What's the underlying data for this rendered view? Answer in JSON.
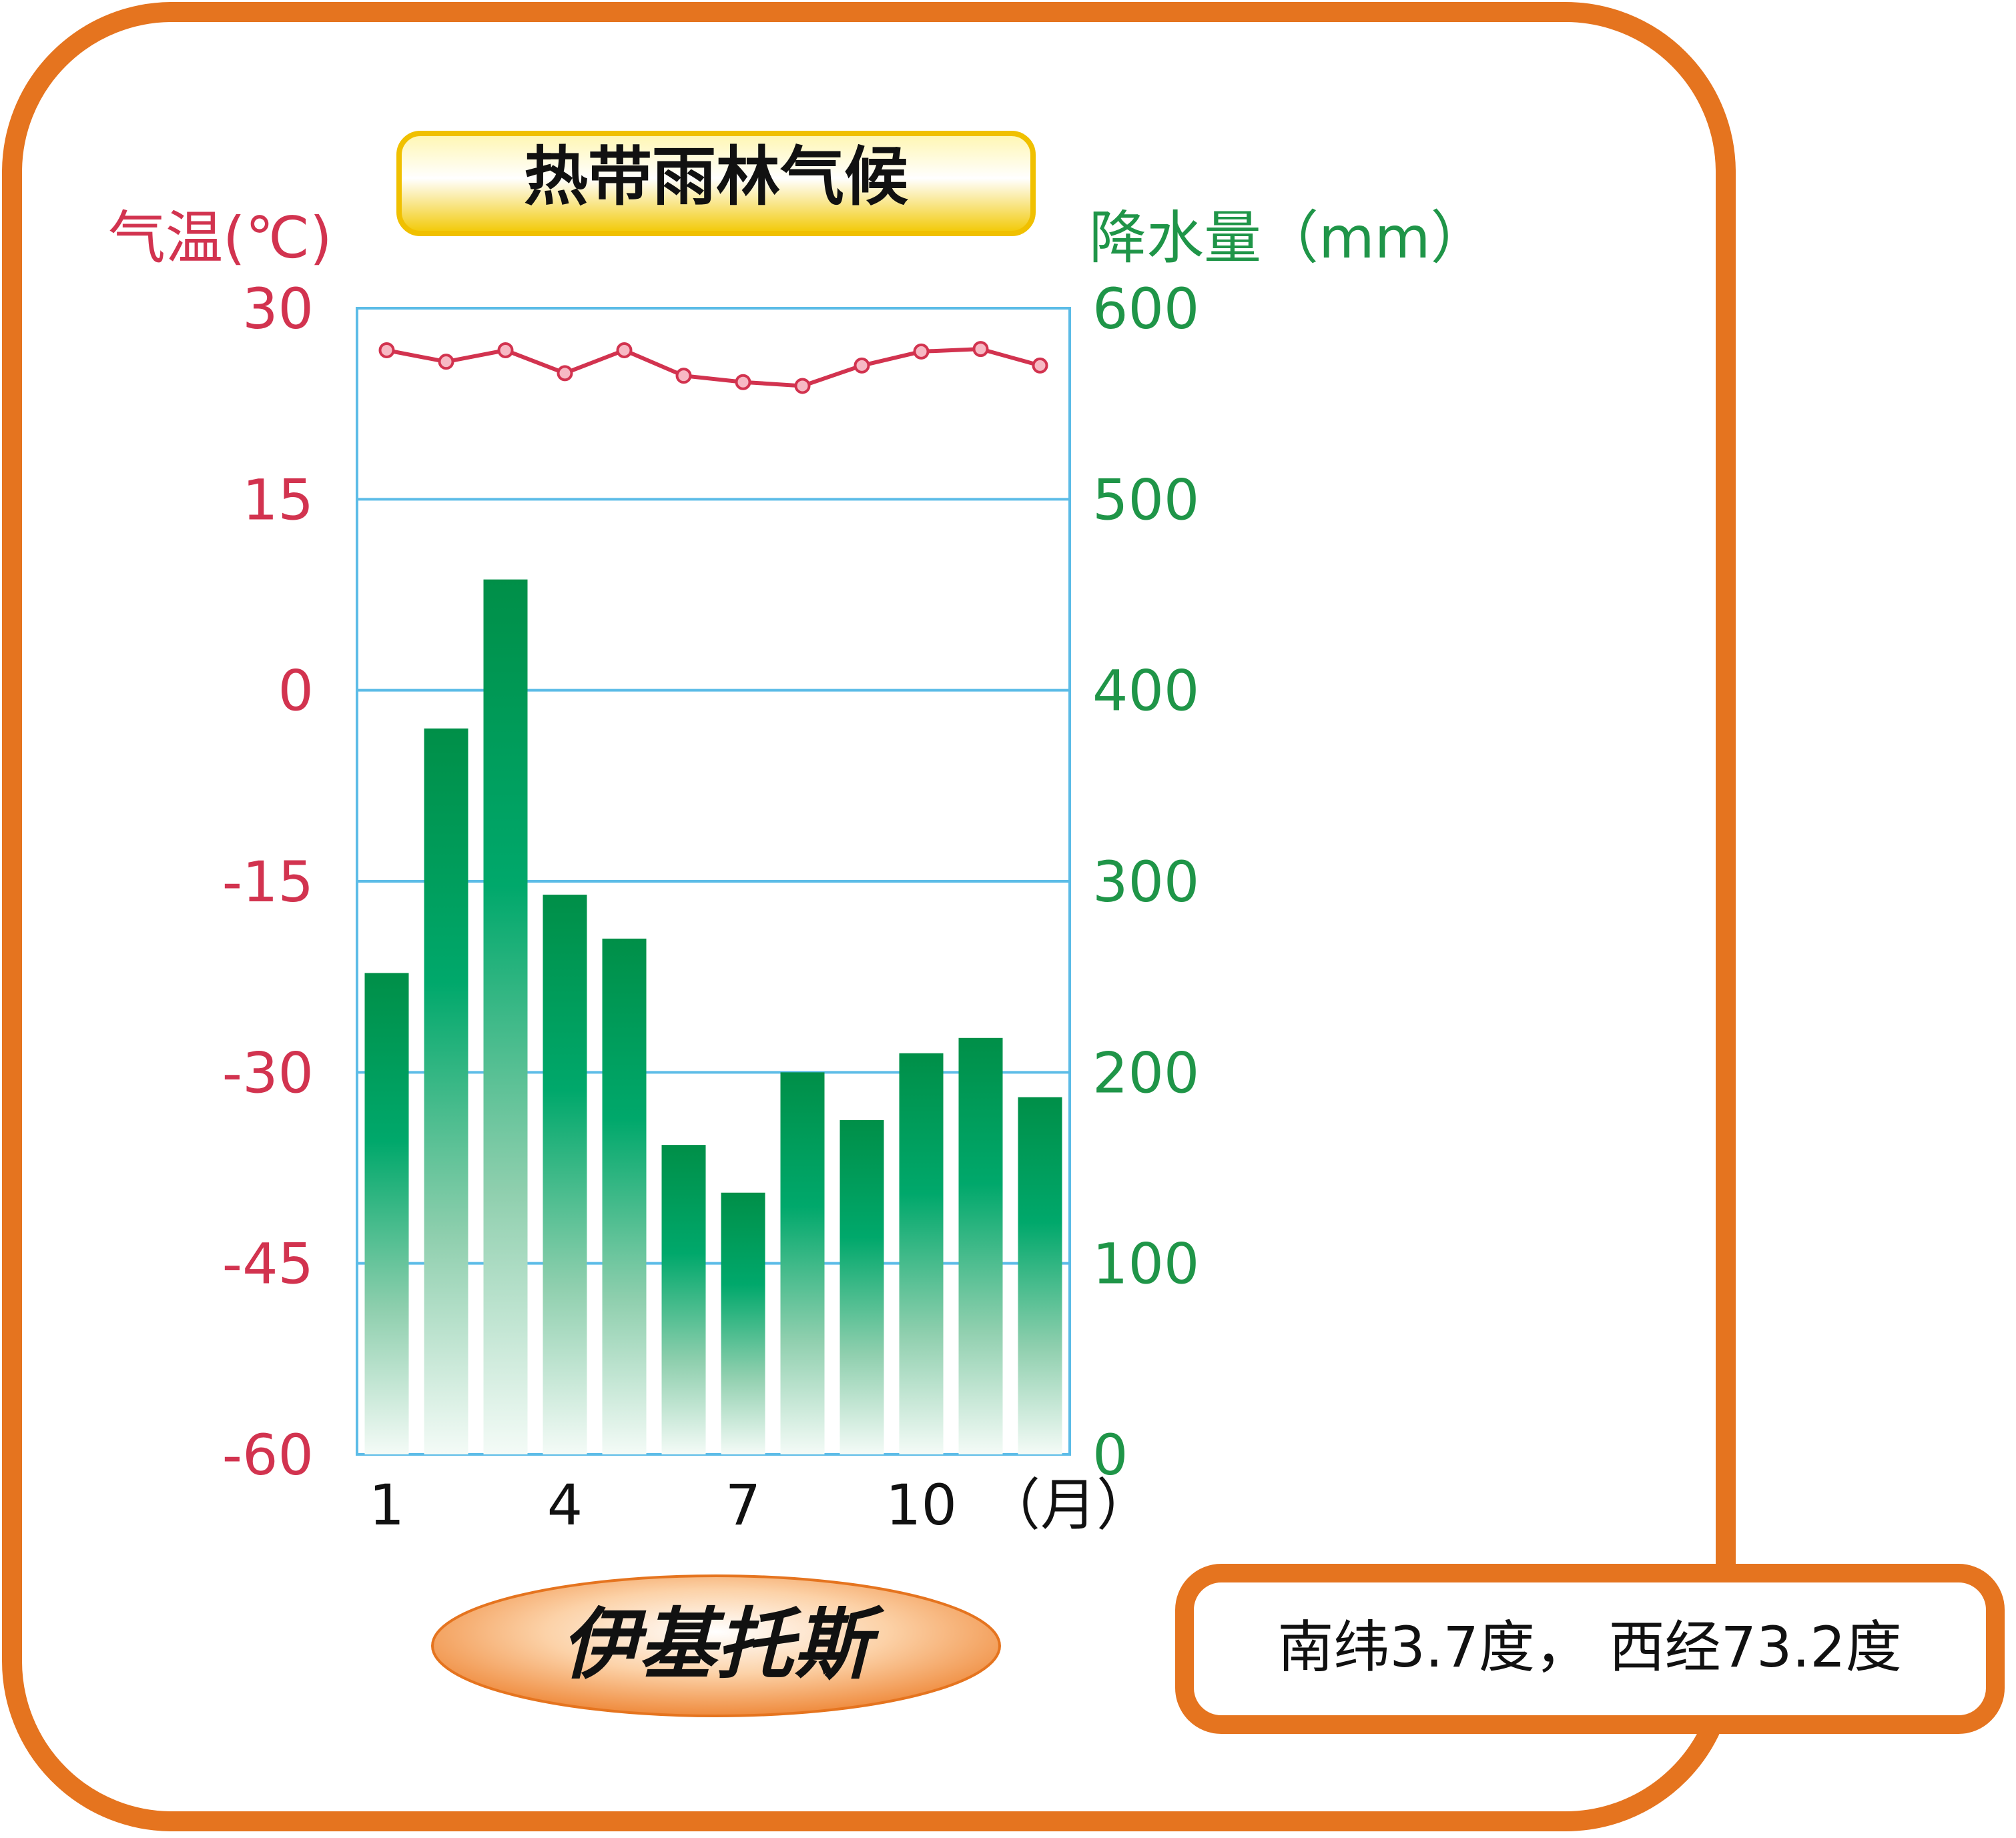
{
  "chart_data": {
    "type": "bar+line",
    "title": "热带雨林气候",
    "station": "伊基托斯",
    "location": "南纬3.7度， 西经73.2度",
    "left_axis": {
      "label": "气温(℃)",
      "ylim": [
        -60,
        30
      ],
      "ticks": [
        30,
        15,
        0,
        -15,
        -30,
        -45,
        -60
      ]
    },
    "right_axis": {
      "label": "降水量（mm）",
      "ylim": [
        0,
        600
      ],
      "ticks": [
        600,
        500,
        400,
        300,
        200,
        100,
        0
      ]
    },
    "x_axis": {
      "unit_label": "（月）",
      "tick_labels": [
        "1",
        "4",
        "7",
        "10"
      ],
      "tick_months": [
        1,
        4,
        7,
        10
      ]
    },
    "months": [
      1,
      2,
      3,
      4,
      5,
      6,
      7,
      8,
      9,
      10,
      11,
      12
    ],
    "series": [
      {
        "name": "降水量",
        "kind": "bar",
        "axis": "right",
        "values": [
          252,
          380,
          458,
          293,
          270,
          162,
          137,
          200,
          175,
          210,
          218,
          187
        ]
      },
      {
        "name": "气温",
        "kind": "line",
        "axis": "left",
        "values": [
          26.7,
          25.8,
          26.7,
          24.9,
          26.7,
          24.7,
          24.2,
          23.9,
          25.5,
          26.6,
          26.8,
          25.5
        ]
      }
    ],
    "colors": {
      "temperature": "#d2334f",
      "precipitation_text": "#1f9548",
      "bar_dark": "#008f48",
      "bar_mid": "#00a86b",
      "bar_light": "#ffffff",
      "grid": "#5cbce7",
      "border": "#e5741f",
      "title_badge": "#f6d400"
    },
    "grid": true
  }
}
